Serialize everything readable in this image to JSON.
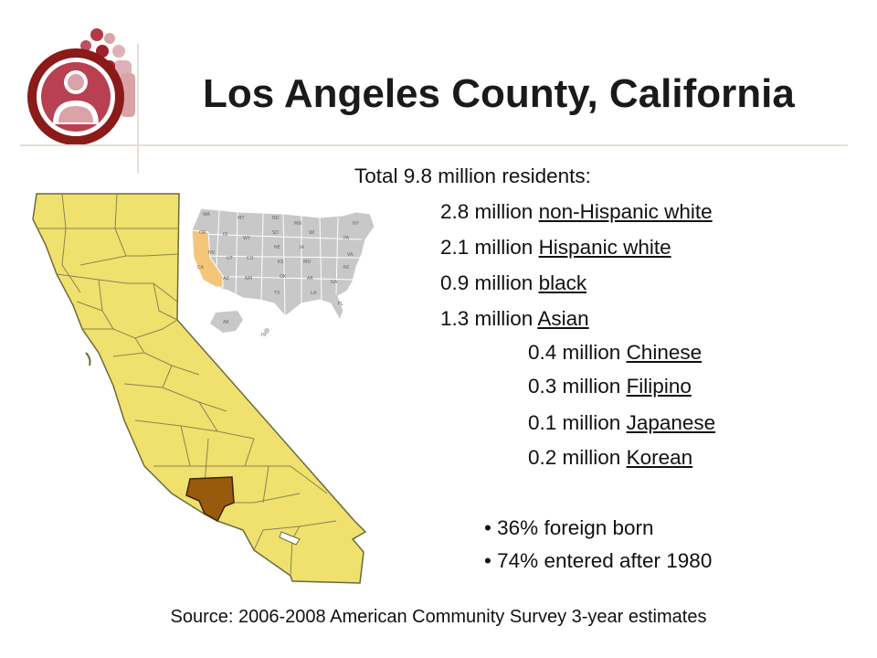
{
  "title": "Los Angeles County, California",
  "total": "Total 9.8 million residents:",
  "groups": [
    {
      "amount": "2.8 million",
      "label": "non-Hispanic white"
    },
    {
      "amount": "2.1 million",
      "label": "Hispanic white"
    },
    {
      "amount": "0.9 million",
      "label": "black"
    },
    {
      "amount": "1.3 million",
      "label": "Asian"
    }
  ],
  "asian_subgroups": [
    {
      "amount": "0.4 million",
      "label": "Chinese"
    },
    {
      "amount": "0.3 million",
      "label": "Filipino"
    },
    {
      "amount": "0.1 million",
      "label": "Japanese"
    },
    {
      "amount": "0.2 million",
      "label": "Korean"
    }
  ],
  "bullets": [
    "36% foreign born",
    "74% entered after 1980"
  ],
  "source": "Source: 2006-2008 American Community Survey 3-year estimates",
  "us_map_labels": [
    "WA",
    "MT",
    "ND",
    "MN",
    "OR",
    "ID",
    "SD",
    "WY",
    "WI",
    "NE",
    "IA",
    "NV",
    "UT",
    "CO",
    "KS",
    "MO",
    "CA",
    "AZ",
    "NM",
    "OK",
    "AR",
    "TX",
    "LA",
    "AK",
    "HI",
    "NY",
    "PA",
    "VA",
    "NC",
    "GA",
    "FL"
  ],
  "colors": {
    "california_fill": "#f0e06e",
    "la_county_fill": "#9a5a0c",
    "us_states_fill": "#c8c8c8",
    "us_california_fill": "#f5c67a",
    "logo_red": "#8b1a1a",
    "logo_pink": "#d9a3a8",
    "rule": "#e6ddd4"
  }
}
